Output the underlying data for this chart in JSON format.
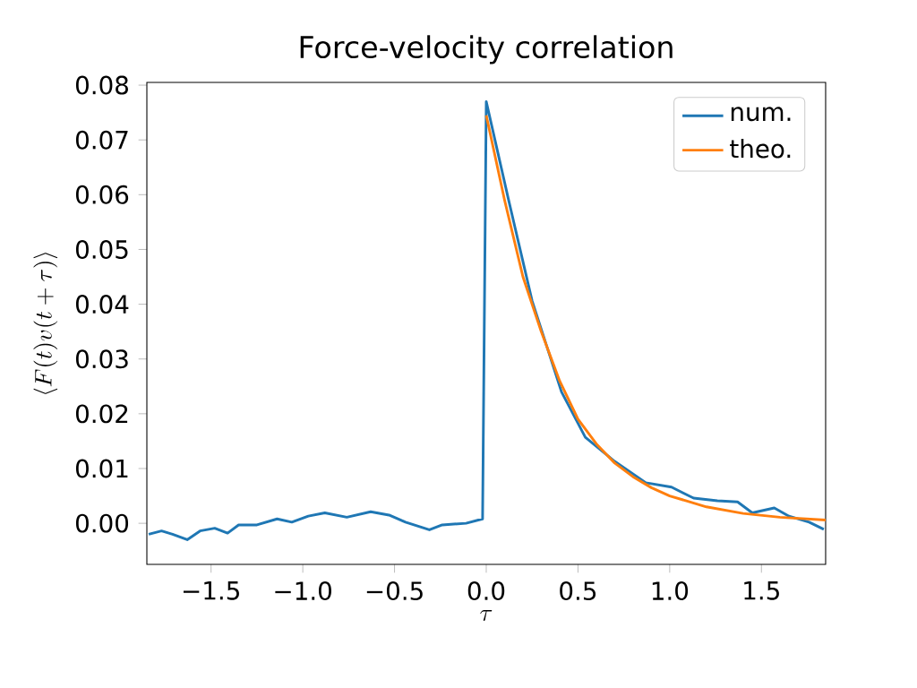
{
  "chart_data": {
    "type": "line",
    "title": "Force-velocity correlation",
    "xlabel": "\\tau",
    "ylabel": "\\langle F(t)v(t+\\tau)\\rangle",
    "xlim": [
      -1.85,
      1.85
    ],
    "ylim": [
      -0.0075,
      0.0805
    ],
    "xticks": [
      {
        "value": -1.5,
        "label": "−1.5"
      },
      {
        "value": -1.0,
        "label": "−1.0"
      },
      {
        "value": -0.5,
        "label": "−0.5"
      },
      {
        "value": 0,
        "label": "0.0"
      },
      {
        "value": 0.5,
        "label": "0.5"
      },
      {
        "value": 1.0,
        "label": "1.0"
      },
      {
        "value": 1.5,
        "label": "1.5"
      }
    ],
    "yticks": [
      {
        "value": 0,
        "label": "0.00"
      },
      {
        "value": 0.01,
        "label": "0.01"
      },
      {
        "value": 0.02,
        "label": "0.02"
      },
      {
        "value": 0.03,
        "label": "0.03"
      },
      {
        "value": 0.04,
        "label": "0.04"
      },
      {
        "value": 0.05,
        "label": "0.05"
      },
      {
        "value": 0.06,
        "label": "0.06"
      },
      {
        "value": 0.07,
        "label": "0.07"
      },
      {
        "value": 0.08,
        "label": "0.08"
      }
    ],
    "legend": "top right",
    "grid": false,
    "series": [
      {
        "name": "num.",
        "color": "#1f77b4",
        "x": [
          -1.84,
          -1.77,
          -1.71,
          -1.63,
          -1.56,
          -1.48,
          -1.41,
          -1.35,
          -1.25,
          -1.14,
          -1.06,
          -0.97,
          -0.88,
          -0.76,
          -0.63,
          -0.53,
          -0.44,
          -0.31,
          -0.24,
          -0.11,
          -0.02,
          0.0,
          0.12,
          0.25,
          0.41,
          0.54,
          0.7,
          0.87,
          1.01,
          1.13,
          1.26,
          1.37,
          1.45,
          1.57,
          1.65,
          1.76,
          1.84
        ],
        "values": [
          -0.002,
          -0.0014,
          -0.002,
          -0.003,
          -0.0014,
          -0.0009,
          -0.0018,
          -0.0003,
          -0.0003,
          0.0008,
          0.0002,
          0.0013,
          0.0019,
          0.0011,
          0.0021,
          0.0015,
          0.0002,
          -0.0012,
          -0.0003,
          0.0,
          0.0008,
          0.077,
          0.0593,
          0.0406,
          0.024,
          0.0157,
          0.0113,
          0.0074,
          0.0066,
          0.0046,
          0.0041,
          0.0039,
          0.0019,
          0.0028,
          0.0013,
          0.0002,
          -0.0011
        ]
      },
      {
        "name": "theo.",
        "color": "#ff7f0e",
        "x": [
          0.0,
          0.1,
          0.2,
          0.3,
          0.4,
          0.5,
          0.6,
          0.7,
          0.8,
          0.9,
          1.0,
          1.2,
          1.4,
          1.6,
          1.85
        ],
        "values": [
          0.0745,
          0.059,
          0.045,
          0.035,
          0.026,
          0.019,
          0.0145,
          0.011,
          0.0085,
          0.0065,
          0.005,
          0.003,
          0.0018,
          0.0011,
          0.0006
        ]
      }
    ]
  }
}
